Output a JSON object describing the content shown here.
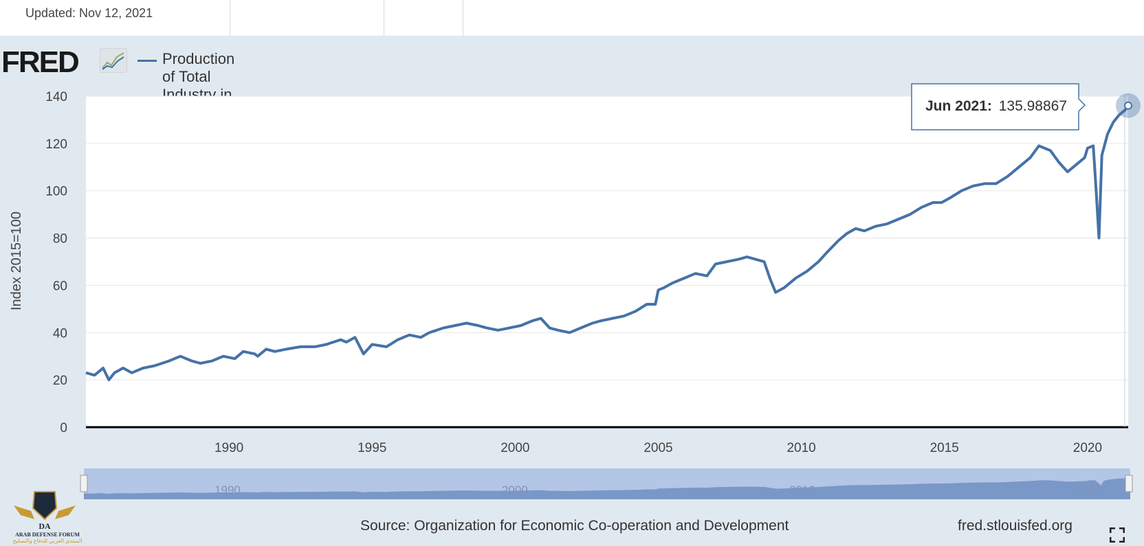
{
  "top": {
    "updated": "Updated: Nov 12, 2021"
  },
  "header": {
    "logo": "FRED",
    "logo_icon": "trend-line-icon",
    "legend_label": "Production of Total Industry in Turkey"
  },
  "tooltip": {
    "date": "Jun 2021:",
    "value": "135.98867"
  },
  "footer": {
    "source": "Source: Organization for Economic Co-operation and Development",
    "url": "fred.stlouisfed.org",
    "fullscreen_icon": "fullscreen-icon"
  },
  "watermark": {
    "line1": "ARAB DEFENSE FORUM",
    "line2": "المنتدى العربي للدفاع والتسليح"
  },
  "colors": {
    "series": "#4572a7",
    "background": "#e1e9f0",
    "plot": "#ffffff",
    "navigator_fill": "#9fb5d8"
  },
  "chart_data": {
    "type": "line",
    "title": "Production of Total Industry in Turkey",
    "xlabel": "",
    "ylabel": "Index 2015=100",
    "xlim": [
      1985.0,
      2021.42
    ],
    "ylim": [
      0,
      140
    ],
    "yticks": [
      0,
      20,
      40,
      60,
      80,
      100,
      120,
      140
    ],
    "xticks": [
      1990,
      1995,
      2000,
      2005,
      2010,
      2015,
      2020
    ],
    "navigator_ticks": [
      1990,
      2000,
      2010,
      2020
    ],
    "series": [
      {
        "name": "Production of Total Industry in Turkey",
        "x": [
          1985.0,
          1985.3,
          1985.6,
          1985.8,
          1986.0,
          1986.3,
          1986.6,
          1987.0,
          1987.4,
          1987.9,
          1988.3,
          1988.7,
          1989.0,
          1989.4,
          1989.8,
          1990.2,
          1990.5,
          1990.9,
          1991.0,
          1991.3,
          1991.6,
          1992.0,
          1992.5,
          1993.0,
          1993.4,
          1993.9,
          1994.1,
          1994.4,
          1994.7,
          1995.0,
          1995.5,
          1995.9,
          1996.3,
          1996.7,
          1997.0,
          1997.5,
          1997.9,
          1998.3,
          1998.7,
          1999.0,
          1999.4,
          1999.8,
          2000.2,
          2000.6,
          2000.9,
          2001.2,
          2001.5,
          2001.9,
          2002.3,
          2002.7,
          2003.0,
          2003.4,
          2003.8,
          2004.2,
          2004.6,
          2004.9,
          2005.0,
          2005.2,
          2005.5,
          2005.9,
          2006.3,
          2006.7,
          2007.0,
          2007.4,
          2007.8,
          2008.1,
          2008.4,
          2008.7,
          2008.9,
          2009.1,
          2009.4,
          2009.8,
          2010.2,
          2010.6,
          2010.9,
          2011.3,
          2011.6,
          2011.9,
          2012.2,
          2012.6,
          2013.0,
          2013.4,
          2013.8,
          2014.2,
          2014.6,
          2014.9,
          2015.2,
          2015.6,
          2016.0,
          2016.4,
          2016.8,
          2017.2,
          2017.6,
          2018.0,
          2018.3,
          2018.7,
          2019.0,
          2019.3,
          2019.7,
          2019.9,
          2020.0,
          2020.2,
          2020.3,
          2020.4,
          2020.5,
          2020.7,
          2020.9,
          2021.1,
          2021.3,
          2021.42
        ],
        "y": [
          23,
          22,
          25,
          20,
          23,
          25,
          23,
          25,
          26,
          28,
          30,
          28,
          27,
          28,
          30,
          29,
          32,
          31,
          30,
          33,
          32,
          33,
          34,
          34,
          35,
          37,
          36,
          38,
          31,
          35,
          34,
          37,
          39,
          38,
          40,
          42,
          43,
          44,
          43,
          42,
          41,
          42,
          43,
          45,
          46,
          42,
          41,
          40,
          42,
          44,
          45,
          46,
          47,
          49,
          52,
          52,
          58,
          59,
          61,
          63,
          65,
          64,
          69,
          70,
          71,
          72,
          71,
          70,
          63,
          57,
          59,
          63,
          66,
          70,
          74,
          79,
          82,
          84,
          83,
          85,
          86,
          88,
          90,
          93,
          95,
          95,
          97,
          100,
          102,
          103,
          103,
          106,
          110,
          114,
          119,
          117,
          112,
          108,
          112,
          114,
          118,
          119,
          100,
          80,
          115,
          124,
          129,
          132,
          134,
          135.99
        ]
      }
    ],
    "tooltip_point": {
      "x": "Jun 2021",
      "y": 135.98867
    }
  }
}
